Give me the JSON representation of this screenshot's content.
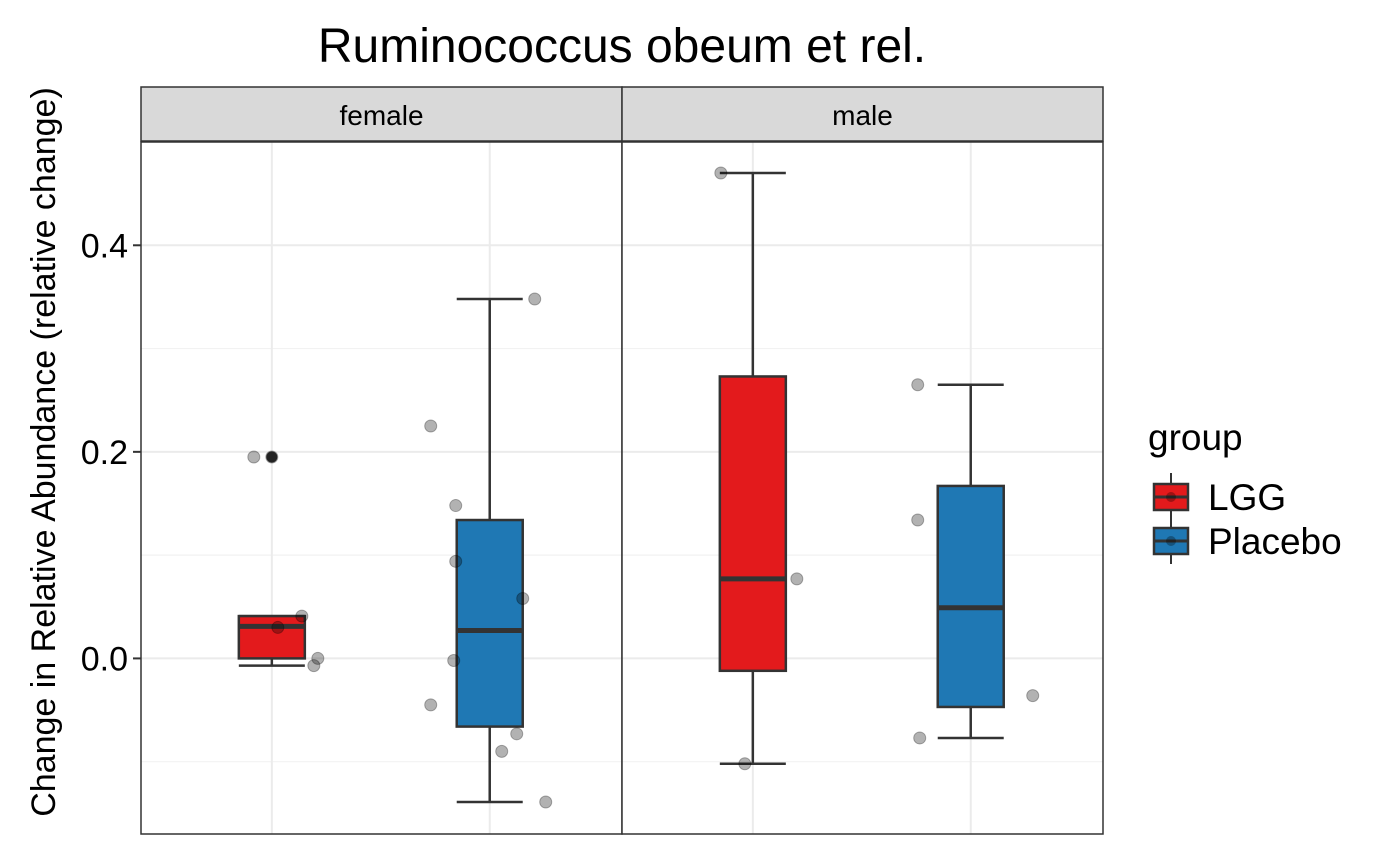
{
  "chart_data": {
    "type": "box",
    "title": "Ruminococcus obeum et rel.",
    "ylabel": "Change in Relative Abundance (relative change)",
    "xlabel": "",
    "ylim": [
      -0.17,
      0.5
    ],
    "yticks": [
      0.0,
      0.2,
      0.4
    ],
    "ytick_labels": [
      "0.0",
      "0.2",
      "0.4"
    ],
    "grid": true,
    "legend": {
      "title": "group",
      "placement": "right",
      "entries": [
        {
          "label": "LGG",
          "color": "#e31a1c"
        },
        {
          "label": "Placebo",
          "color": "#1f78b4"
        }
      ]
    },
    "facets": [
      {
        "label": "female",
        "groups": [
          {
            "group": "LGG",
            "color": "#e31a1c",
            "whisker_low": -0.007,
            "q1": 0.0,
            "median": 0.031,
            "q3": 0.041,
            "whisker_high": 0.041,
            "outliers": [
              0.195
            ],
            "points": [
              0.195,
              0.195,
              0.041,
              0.03,
              -0.007,
              0.0
            ]
          },
          {
            "group": "Placebo",
            "color": "#1f78b4",
            "whisker_low": -0.139,
            "q1": -0.066,
            "median": 0.027,
            "q3": 0.134,
            "whisker_high": 0.348,
            "outliers": [],
            "points": [
              0.225,
              0.148,
              0.094,
              -0.002,
              -0.045,
              0.348,
              0.058,
              -0.073,
              -0.09,
              -0.139
            ]
          }
        ]
      },
      {
        "label": "male",
        "groups": [
          {
            "group": "LGG",
            "color": "#e31a1c",
            "whisker_low": -0.102,
            "q1": -0.012,
            "median": 0.077,
            "q3": 0.273,
            "whisker_high": 0.47,
            "outliers": [],
            "points": [
              0.47,
              -0.102,
              0.077
            ]
          },
          {
            "group": "Placebo",
            "color": "#1f78b4",
            "whisker_low": -0.077,
            "q1": -0.047,
            "median": 0.049,
            "q3": 0.167,
            "whisker_high": 0.265,
            "outliers": [],
            "points": [
              0.265,
              0.134,
              -0.077,
              -0.036
            ]
          }
        ]
      }
    ]
  }
}
